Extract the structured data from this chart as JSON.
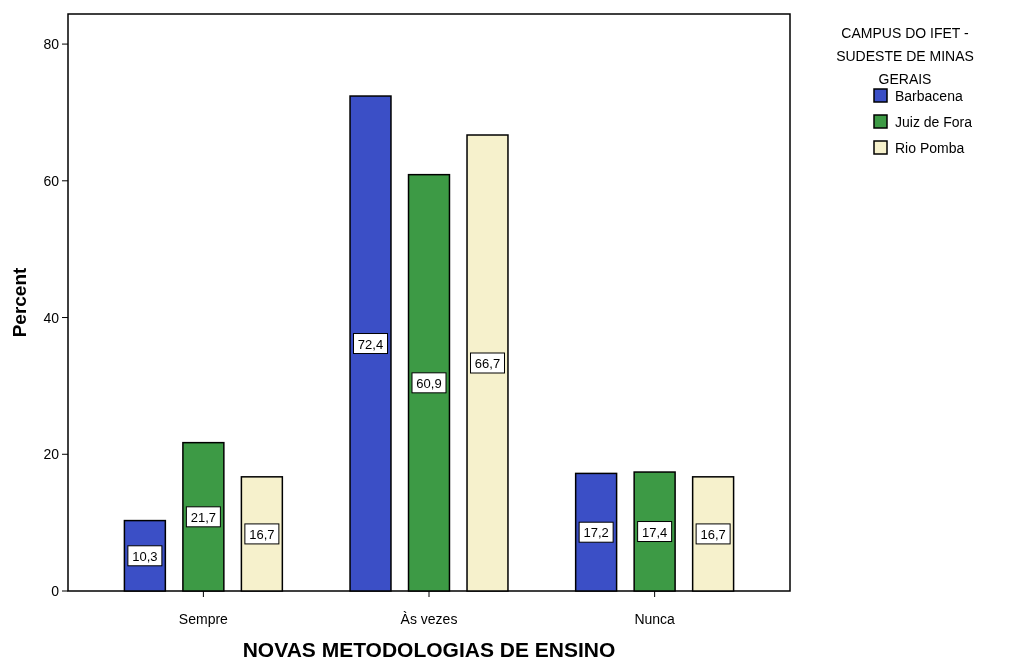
{
  "chart_data": {
    "type": "bar",
    "xlabel": "NOVAS METODOLOGIAS DE ENSINO",
    "ylabel": "Percent",
    "legend_title": "CAMPUS DO IFET - SUDESTE DE MINAS GERAIS",
    "categories": [
      "Sempre",
      "Às vezes",
      "Nunca"
    ],
    "series": [
      {
        "name": "Barbacena",
        "color": "#3b4fc6",
        "values": [
          10.3,
          72.4,
          17.2
        ],
        "value_labels": [
          "10,3",
          "72,4",
          "17,2"
        ]
      },
      {
        "name": "Juiz de Fora",
        "color": "#3d9a45",
        "values": [
          21.7,
          60.9,
          17.4
        ],
        "value_labels": [
          "21,7",
          "60,9",
          "17,4"
        ]
      },
      {
        "name": "Rio Pomba",
        "color": "#f6f1cc",
        "values": [
          16.7,
          66.7,
          16.7
        ],
        "value_labels": [
          "16,7",
          "66,7",
          "16,7"
        ]
      }
    ],
    "ylim": [
      0,
      84.4
    ],
    "yticks": [
      0,
      20,
      40,
      60,
      80
    ],
    "legend": "right"
  }
}
